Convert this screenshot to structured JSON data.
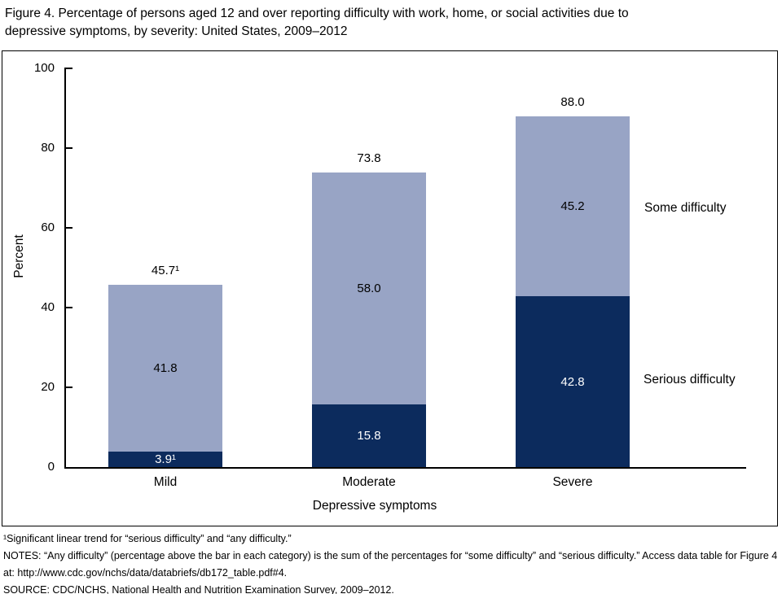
{
  "figure": {
    "title_line1": "Figure 4. Percentage of persons aged 12 and over reporting difficulty with work, home, or social activities due to",
    "title_line2": "depressive symptoms, by severity: United States, 2009–2012"
  },
  "chart_data": {
    "type": "bar",
    "stacked": true,
    "title": "Figure 4. Percentage of persons aged 12 and over reporting difficulty with work, home, or social activities due to depressive symptoms, by severity: United States, 2009–2012",
    "categories": [
      "Mild",
      "Moderate",
      "Severe"
    ],
    "series": [
      {
        "name": "Serious difficulty",
        "color": "#0c2b5d",
        "label_color": "#ffffff",
        "values": [
          3.9,
          15.8,
          42.8
        ],
        "value_labels": [
          "3.9¹",
          "15.8",
          "42.8"
        ]
      },
      {
        "name": "Some difficulty",
        "color": "#98a4c5",
        "label_color": "#000000",
        "values": [
          41.8,
          58.0,
          45.2
        ],
        "value_labels": [
          "41.8",
          "58.0",
          "45.2"
        ]
      }
    ],
    "totals": [
      45.7,
      73.8,
      88.0
    ],
    "total_labels": [
      "45.7¹",
      "73.8",
      "88.0"
    ],
    "xlabel": "Depressive symptoms",
    "ylabel": "Percent",
    "ylim": [
      0,
      100
    ],
    "yticks": [
      0,
      20,
      40,
      60,
      80,
      100
    ],
    "grid": false,
    "legend": {
      "position": "right",
      "labels": [
        "Some difficulty",
        "Serious difficulty"
      ]
    }
  },
  "footnotes": [
    "¹Significant linear trend for “serious difficulty” and “any difficulty.”",
    "NOTES: “Any difficulty” (percentage above the bar in each category) is the sum of the percentages for “some difficulty” and “serious difficulty.” Access data table for Figure 4 at: http://www.cdc.gov/nchs/data/databriefs/db172_table.pdf#4.",
    "SOURCE: CDC/NCHS, National Health and Nutrition Examination Survey, 2009–2012."
  ]
}
